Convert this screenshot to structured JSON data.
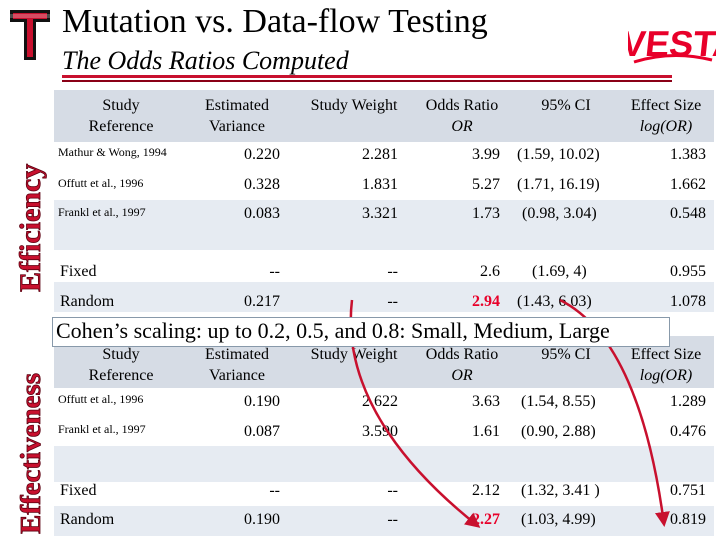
{
  "header": {
    "title": "Mutation vs. Data-flow Testing",
    "subtitle": "The Odds Ratios Computed",
    "logo_left": "Texas Tech Double T",
    "logo_right": "AVESTA"
  },
  "side_labels": {
    "top": "Efficiency",
    "bottom": "Effectiveness"
  },
  "columns": {
    "study_ref": [
      "Study",
      "Reference"
    ],
    "est_var": [
      "Estimated",
      "Variance"
    ],
    "study_weight": "Study Weight",
    "odds_ratio": [
      "Odds Ratio",
      "OR"
    ],
    "ci": "95% CI",
    "effect_size": [
      "Effect Size",
      "log(OR)"
    ]
  },
  "efficiency_rows": [
    {
      "ref": "Mathur & Wong, 1994",
      "var": "0.220",
      "weight": "2.281",
      "or": "3.99",
      "ci": "(1.59, 10.02)",
      "es": "1.383"
    },
    {
      "ref": "Offutt et al., 1996",
      "var": "0.328",
      "weight": "1.831",
      "or": "5.27",
      "ci": "(1.71, 16.19)",
      "es": "1.662"
    },
    {
      "ref": "Frankl et al., 1997",
      "var": "0.083",
      "weight": "3.321",
      "or": "1.73",
      "ci": "(0.98, 3.04)",
      "es": "0.548"
    }
  ],
  "efficiency_summary": [
    {
      "ref": "Fixed",
      "var": "--",
      "weight": "--",
      "or": "2.6",
      "ci": "(1.69, 4)",
      "es": "0.955"
    },
    {
      "ref": "Random",
      "var": "0.217",
      "weight": "--",
      "or": "2.94",
      "ci": "(1.43, 6.03)",
      "es": "1.078"
    }
  ],
  "banner": "Cohen’s scaling: up to 0.2, 0.5, and 0.8: Small, Medium, Large",
  "effectiveness_rows": [
    {
      "ref": "Offutt et al., 1996",
      "var": "0.190",
      "weight": "2.622",
      "or": "3.63",
      "ci": "(1.54, 8.55)",
      "es": "1.289"
    },
    {
      "ref": "Frankl et al., 1997",
      "var": "0.087",
      "weight": "3.590",
      "or": "1.61",
      "ci": "(0.90, 2.88)",
      "es": "0.476"
    }
  ],
  "effectiveness_summary": [
    {
      "ref": "Fixed",
      "var": "--",
      "weight": "--",
      "or": "2.12",
      "ci": "(1.32, 3.41 )",
      "es": "0.751"
    },
    {
      "ref": "Random",
      "var": "0.190",
      "weight": "--",
      "or": "2.27",
      "ci": "(1.03, 4.99)",
      "es": "0.819"
    }
  ],
  "colors": {
    "accent_red": "#c8102e",
    "highlight_red": "#e8002a",
    "row_shade": "#d6dce5"
  }
}
